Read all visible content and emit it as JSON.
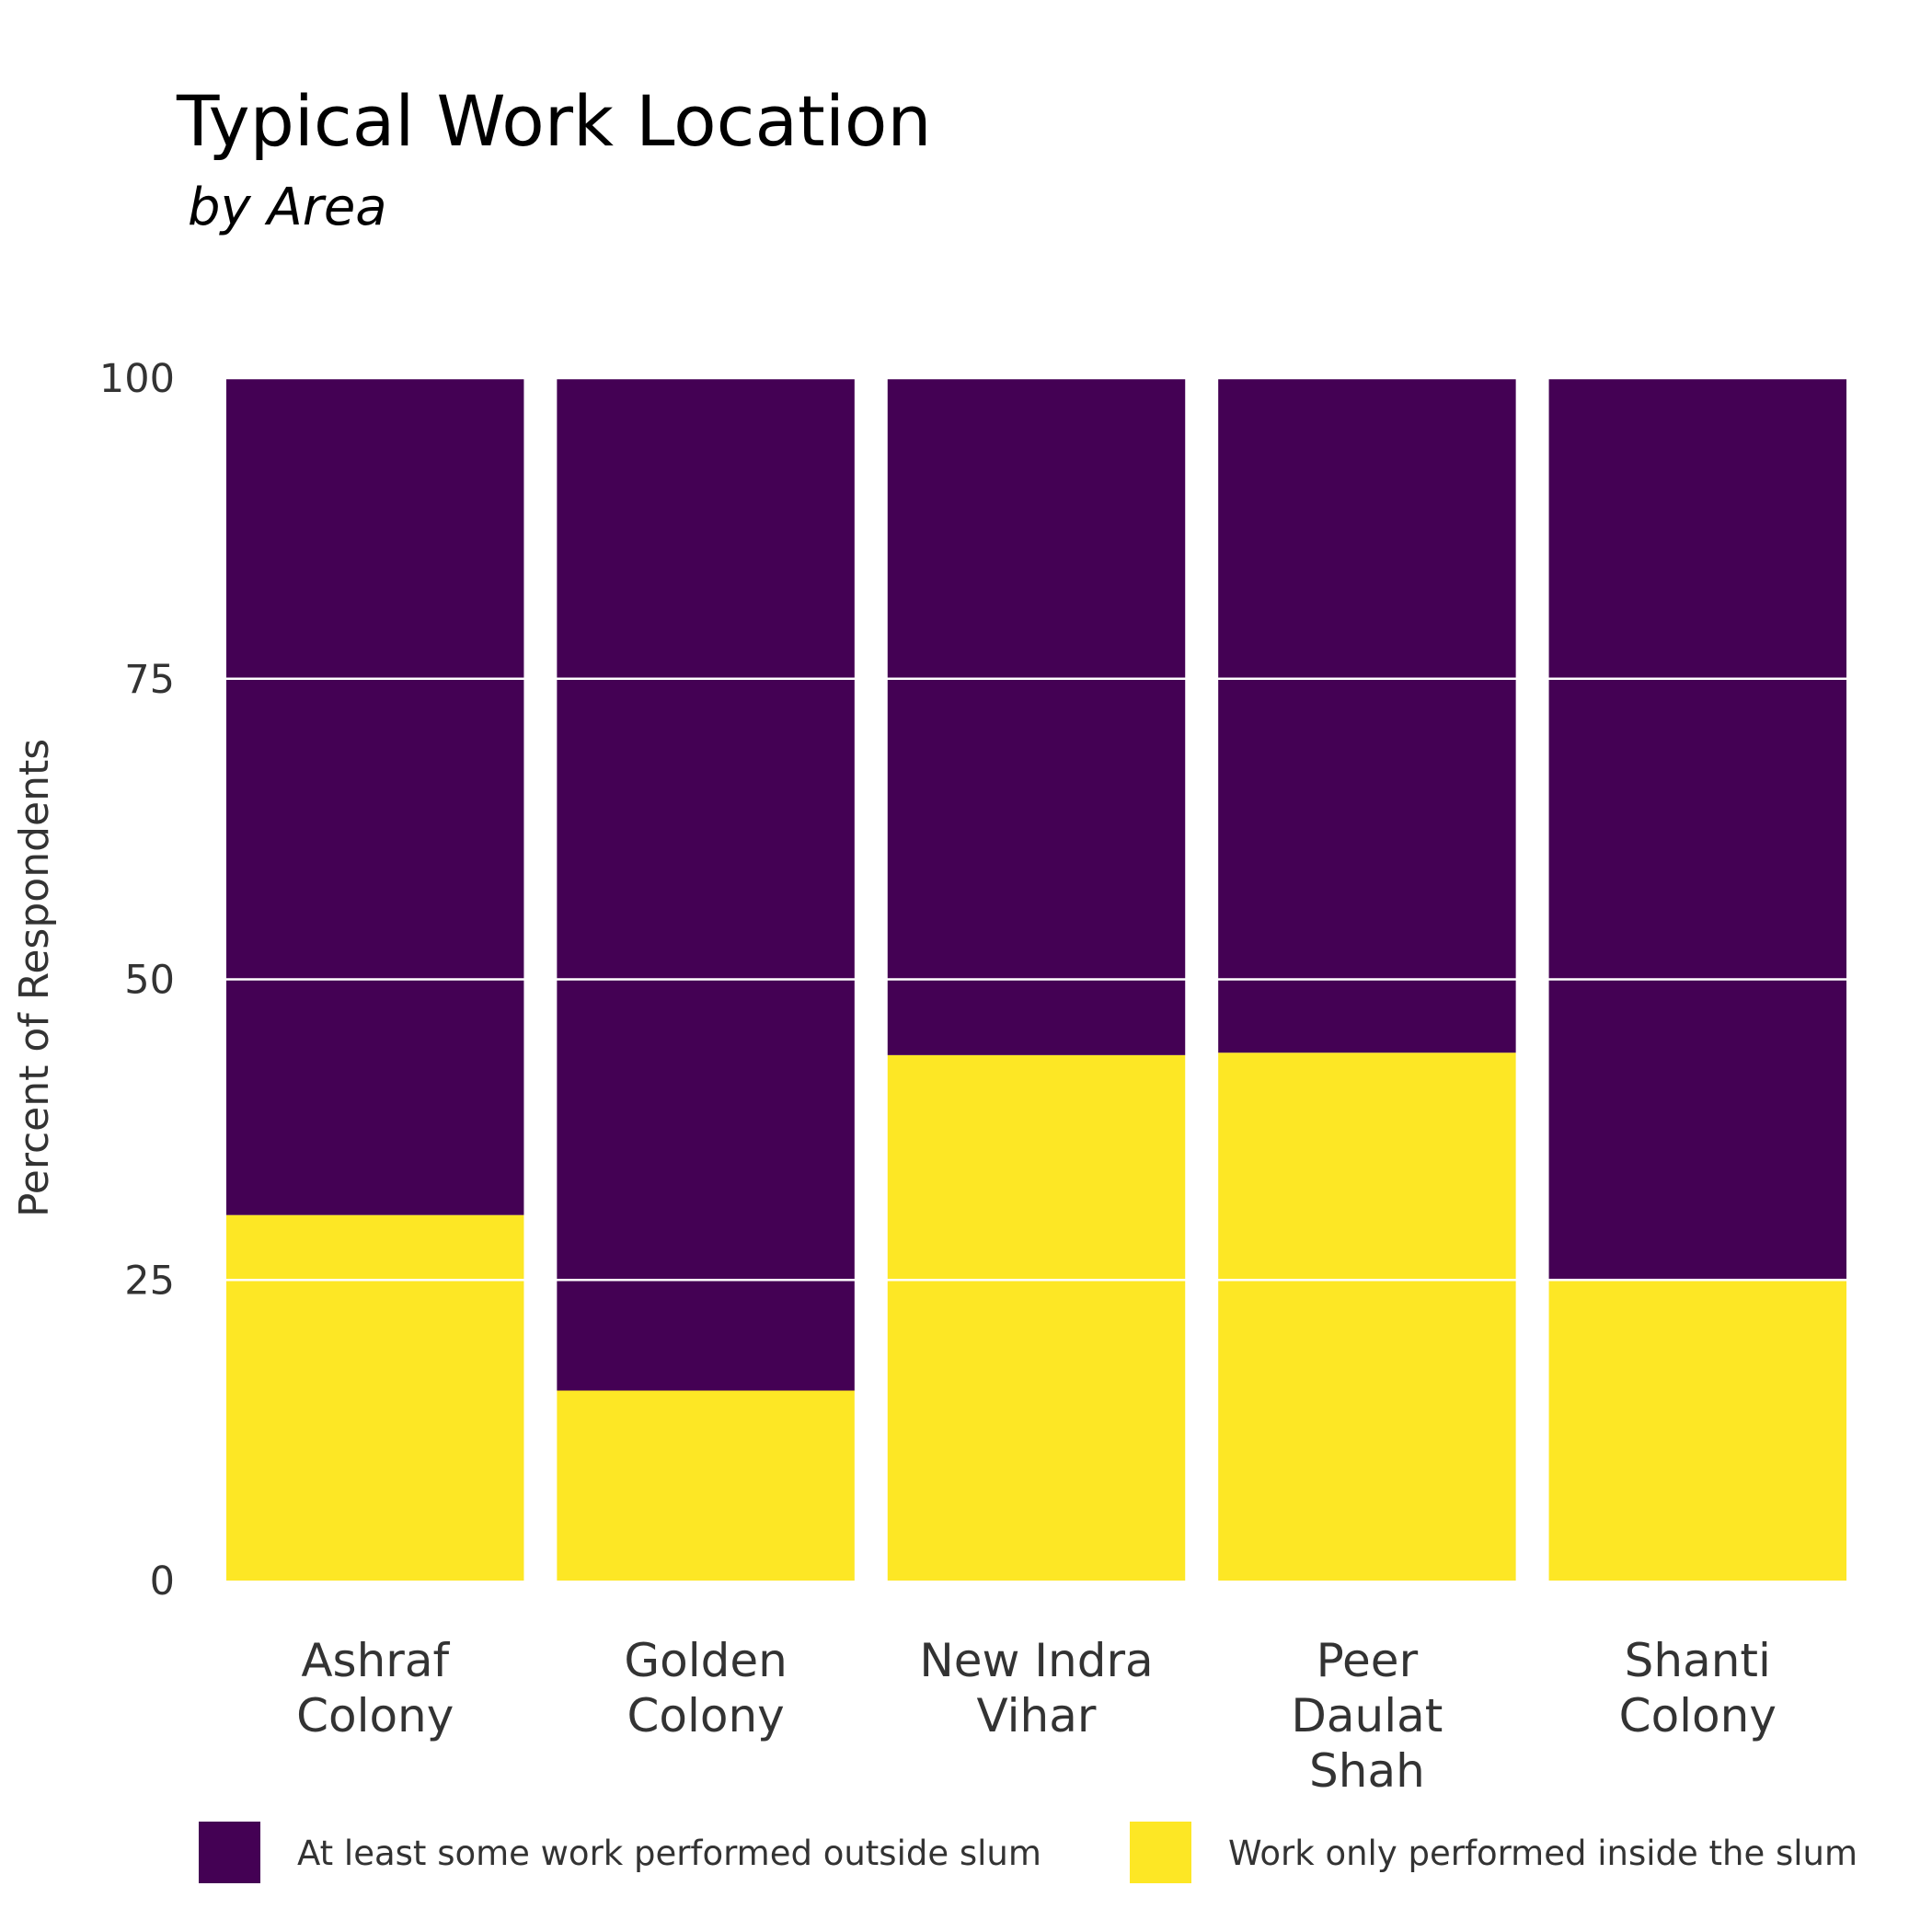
{
  "chart_data": {
    "type": "bar",
    "stacked": true,
    "title": "Typical Work Location",
    "subtitle": "by Area",
    "xlabel": "",
    "ylabel": "Percent of Respondents",
    "ylim": [
      0,
      100
    ],
    "yticks": [
      0,
      25,
      50,
      75,
      100
    ],
    "grid": true,
    "legend_position": "bottom",
    "categories": [
      [
        "Ashraf",
        "Colony"
      ],
      [
        "Golden",
        "Colony"
      ],
      [
        "New Indra",
        "Vihar"
      ],
      [
        "Peer",
        "Daulat",
        "Shah"
      ],
      [
        "Shanti",
        "Colony"
      ]
    ],
    "series": [
      {
        "name": "Work only performed inside the slum",
        "color": "#FDE725",
        "values": [
          30.4,
          15.8,
          43.7,
          43.9,
          25.1
        ]
      },
      {
        "name": "At least some work performed outside slum",
        "color": "#440154",
        "values": [
          69.6,
          84.2,
          56.3,
          56.1,
          74.9
        ]
      }
    ],
    "legend_order": [
      1,
      0
    ]
  }
}
